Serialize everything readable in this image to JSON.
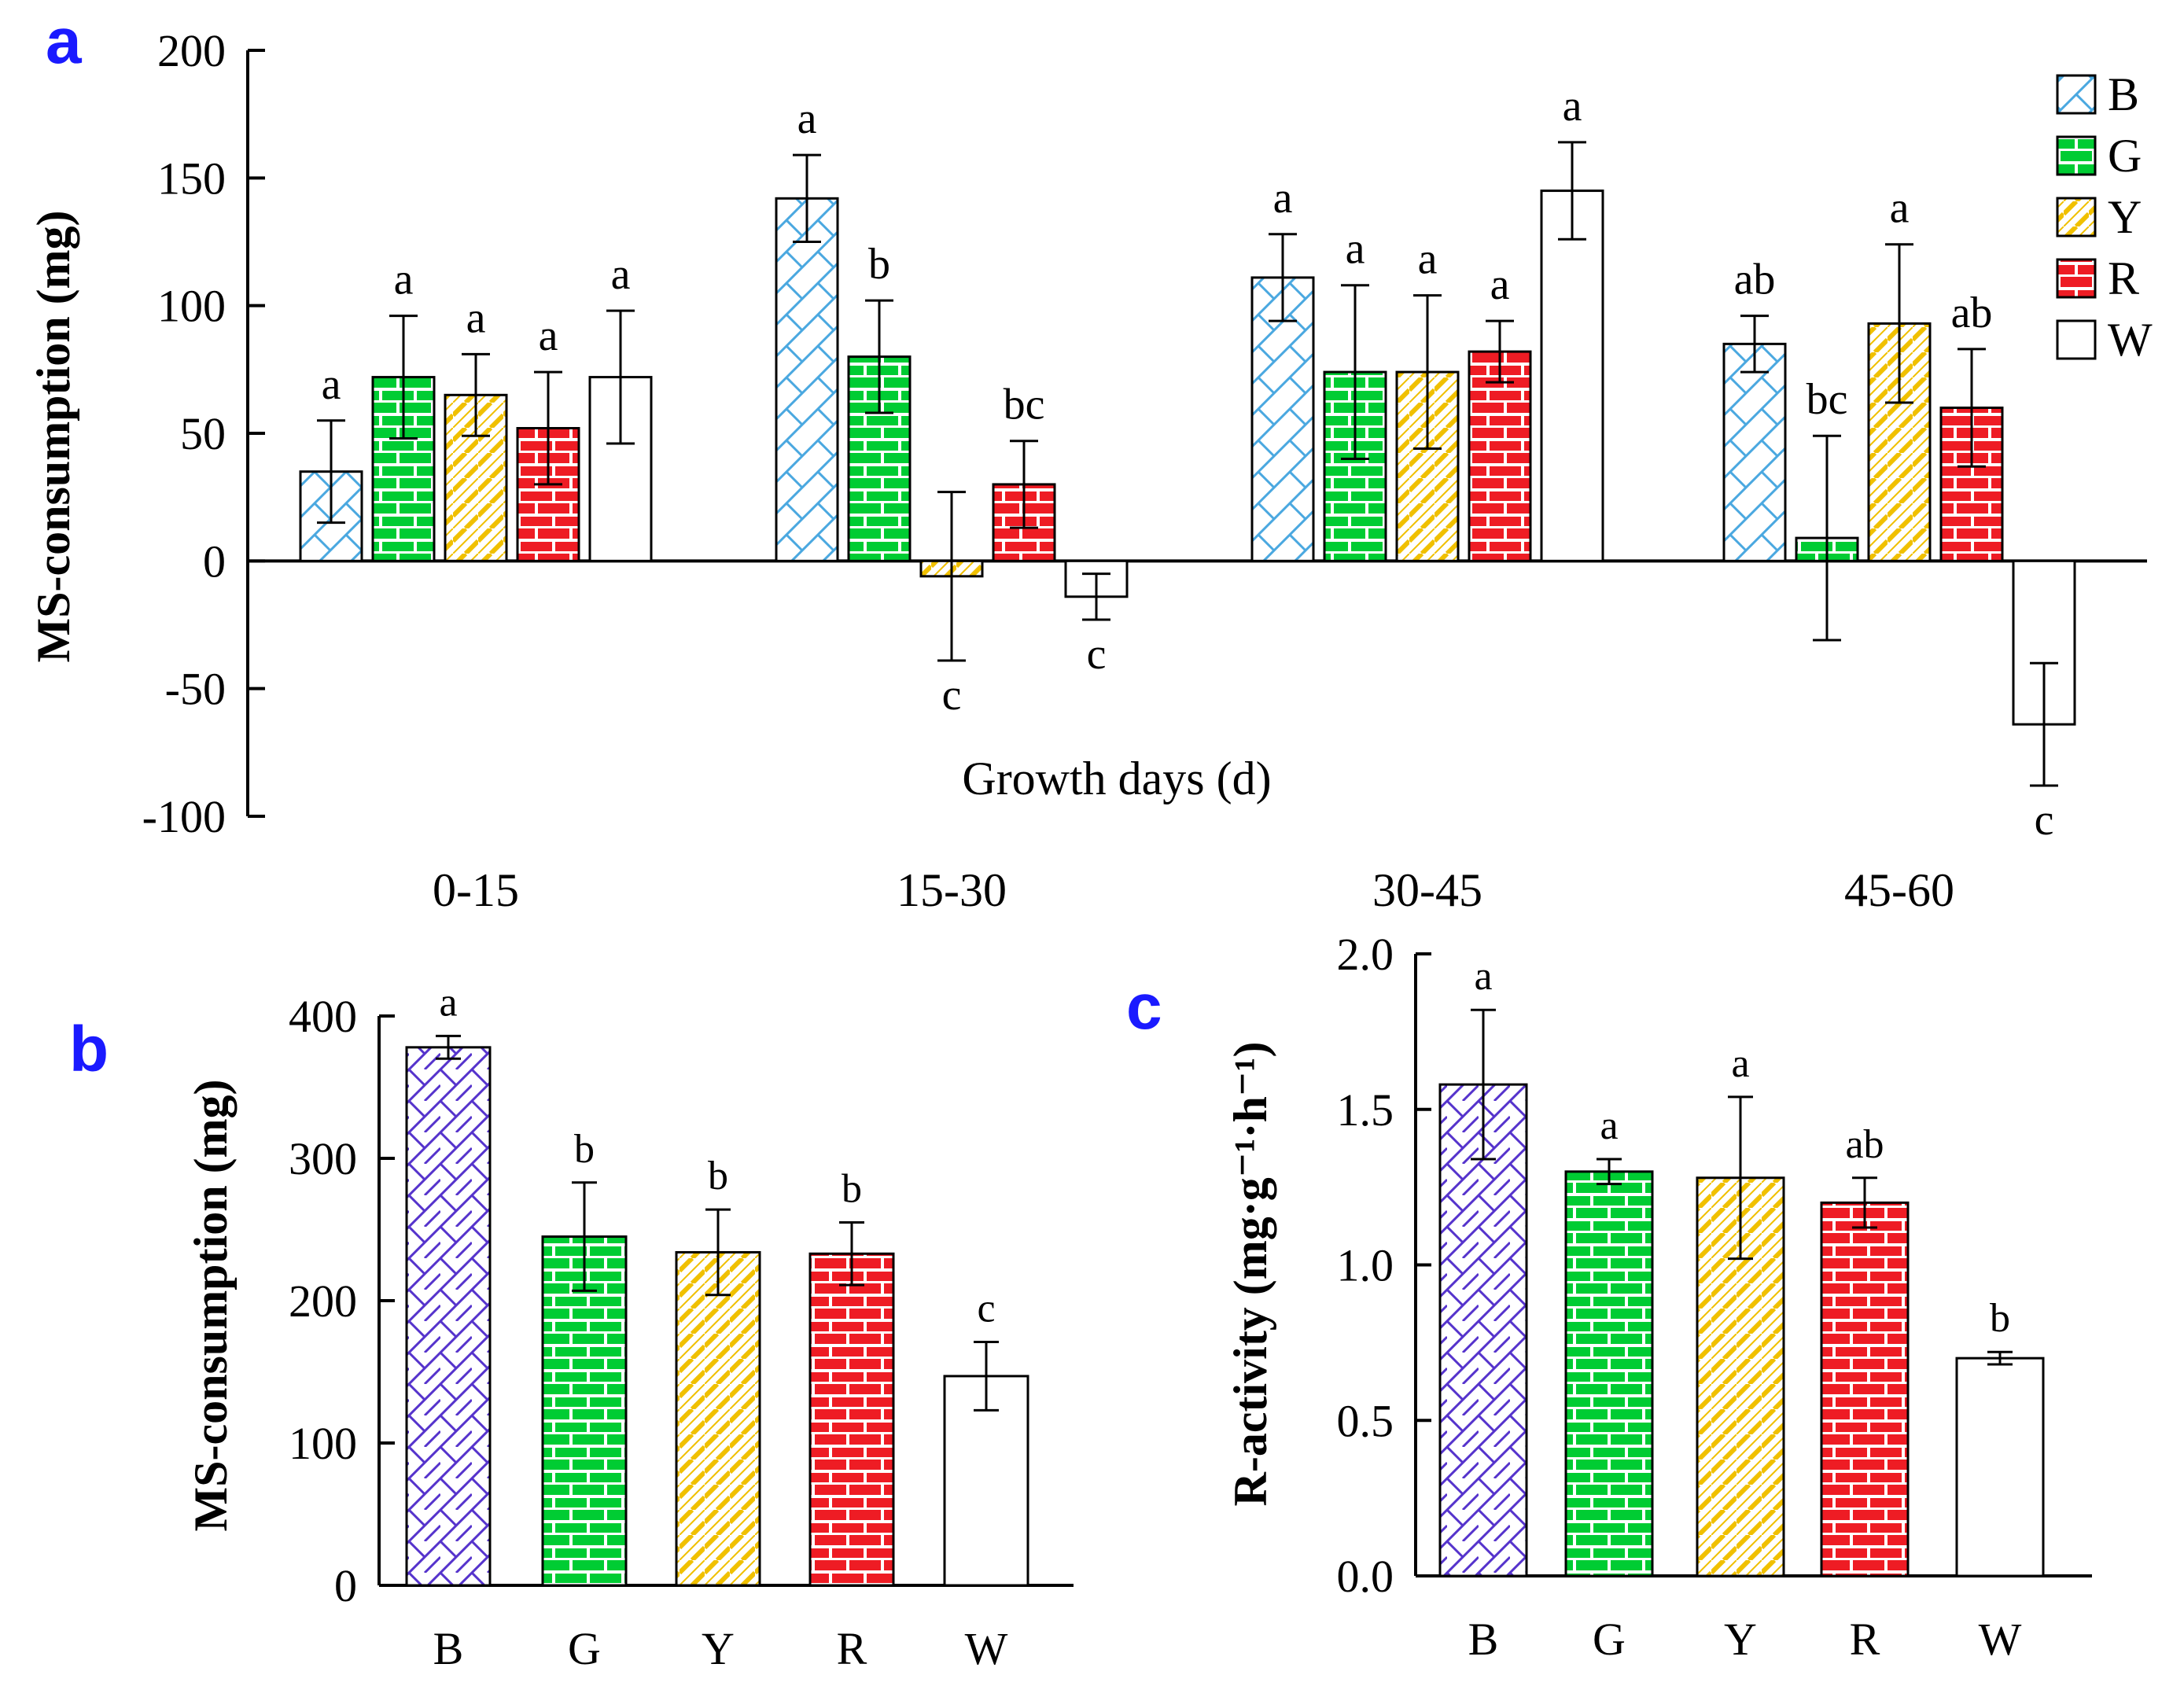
{
  "chart_data": [
    {
      "panel": "a",
      "type": "bar",
      "xlabel": "Growth days (d)",
      "ylabel": "MS-consumption (mg)",
      "ylim": [
        -100,
        200
      ],
      "yticks": [
        -100,
        -50,
        0,
        50,
        100,
        150,
        200
      ],
      "categories": [
        "0-15",
        "15-30",
        "30-45",
        "45-60"
      ],
      "legend": [
        "B",
        "G",
        "Y",
        "R",
        "W"
      ],
      "legend_position": "top-right",
      "series": [
        {
          "name": "B",
          "values": [
            35,
            142,
            111,
            85
          ],
          "errors": [
            20,
            17,
            17,
            11
          ],
          "letters": [
            "a",
            "a",
            "a",
            "ab"
          ]
        },
        {
          "name": "G",
          "values": [
            72,
            80,
            74,
            9
          ],
          "errors": [
            24,
            22,
            34,
            40
          ],
          "letters": [
            "a",
            "b",
            "a",
            "bc"
          ]
        },
        {
          "name": "Y",
          "values": [
            65,
            -6,
            74,
            93
          ],
          "errors": [
            16,
            33,
            30,
            31
          ],
          "letters": [
            "a",
            "c",
            "a",
            "a"
          ]
        },
        {
          "name": "R",
          "values": [
            52,
            30,
            82,
            60
          ],
          "errors": [
            22,
            17,
            12,
            23
          ],
          "letters": [
            "a",
            "bc",
            "a",
            "ab"
          ]
        },
        {
          "name": "W",
          "values": [
            72,
            -14,
            145,
            -64
          ],
          "errors": [
            26,
            9,
            19,
            24
          ],
          "letters": [
            "a",
            "c",
            "a",
            "c"
          ]
        }
      ]
    },
    {
      "panel": "b",
      "type": "bar",
      "xlabel": "",
      "ylabel": "MS-consumption (mg)",
      "ylim": [
        0,
        400
      ],
      "yticks": [
        0,
        100,
        200,
        300,
        400
      ],
      "categories": [
        "B",
        "G",
        "Y",
        "R",
        "W"
      ],
      "values": [
        378,
        245,
        234,
        233,
        147
      ],
      "errors": [
        8,
        38,
        30,
        22,
        24
      ],
      "letters": [
        "a",
        "b",
        "b",
        "b",
        "c"
      ]
    },
    {
      "panel": "c",
      "type": "bar",
      "xlabel": "",
      "ylabel": "R-activity (mg·g⁻¹·h⁻¹)",
      "ylim": [
        0,
        2.0
      ],
      "yticks": [
        "0.0",
        "0.5",
        "1.0",
        "1.5",
        "2.0"
      ],
      "categories": [
        "B",
        "G",
        "Y",
        "R",
        "W"
      ],
      "values": [
        1.58,
        1.3,
        1.28,
        1.2,
        0.7
      ],
      "errors": [
        0.24,
        0.04,
        0.26,
        0.08,
        0.02
      ],
      "letters": [
        "a",
        "a",
        "a",
        "ab",
        "b"
      ]
    }
  ],
  "colors": {
    "B": "#4aa8e0",
    "B_panels_bc": "#5533cc",
    "G": "#00cc33",
    "Y": "#f0c000",
    "R": "#ee1c24",
    "W": "#000000"
  },
  "panel_labels": {
    "a": "a",
    "b": "b",
    "c": "c"
  }
}
